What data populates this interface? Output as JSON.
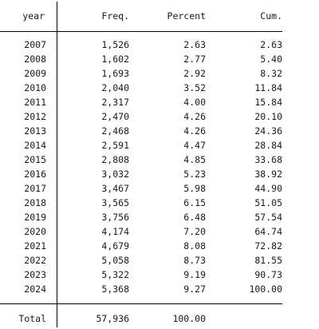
{
  "header": {
    "year": "year",
    "freq": "Freq.",
    "percent": "Percent",
    "cum": "Cum."
  },
  "rows": [
    {
      "year": "2007",
      "freq": "1,526",
      "percent": "2.63",
      "cum": "2.63"
    },
    {
      "year": "2008",
      "freq": "1,602",
      "percent": "2.77",
      "cum": "5.40"
    },
    {
      "year": "2009",
      "freq": "1,693",
      "percent": "2.92",
      "cum": "8.32"
    },
    {
      "year": "2010",
      "freq": "2,040",
      "percent": "3.52",
      "cum": "11.84"
    },
    {
      "year": "2011",
      "freq": "2,317",
      "percent": "4.00",
      "cum": "15.84"
    },
    {
      "year": "2012",
      "freq": "2,470",
      "percent": "4.26",
      "cum": "20.10"
    },
    {
      "year": "2013",
      "freq": "2,468",
      "percent": "4.26",
      "cum": "24.36"
    },
    {
      "year": "2014",
      "freq": "2,591",
      "percent": "4.47",
      "cum": "28.84"
    },
    {
      "year": "2015",
      "freq": "2,808",
      "percent": "4.85",
      "cum": "33.68"
    },
    {
      "year": "2016",
      "freq": "3,032",
      "percent": "5.23",
      "cum": "38.92"
    },
    {
      "year": "2017",
      "freq": "3,467",
      "percent": "5.98",
      "cum": "44.90"
    },
    {
      "year": "2018",
      "freq": "3,565",
      "percent": "6.15",
      "cum": "51.05"
    },
    {
      "year": "2019",
      "freq": "3,756",
      "percent": "6.48",
      "cum": "57.54"
    },
    {
      "year": "2020",
      "freq": "4,174",
      "percent": "7.20",
      "cum": "64.74"
    },
    {
      "year": "2021",
      "freq": "4,679",
      "percent": "8.08",
      "cum": "72.82"
    },
    {
      "year": "2022",
      "freq": "5,058",
      "percent": "8.73",
      "cum": "81.55"
    },
    {
      "year": "2023",
      "freq": "5,322",
      "percent": "9.19",
      "cum": "90.73"
    },
    {
      "year": "2024",
      "freq": "5,368",
      "percent": "9.27",
      "cum": "100.00"
    }
  ],
  "total": {
    "label": "Total",
    "freq": "57,936",
    "percent": "100.00"
  }
}
